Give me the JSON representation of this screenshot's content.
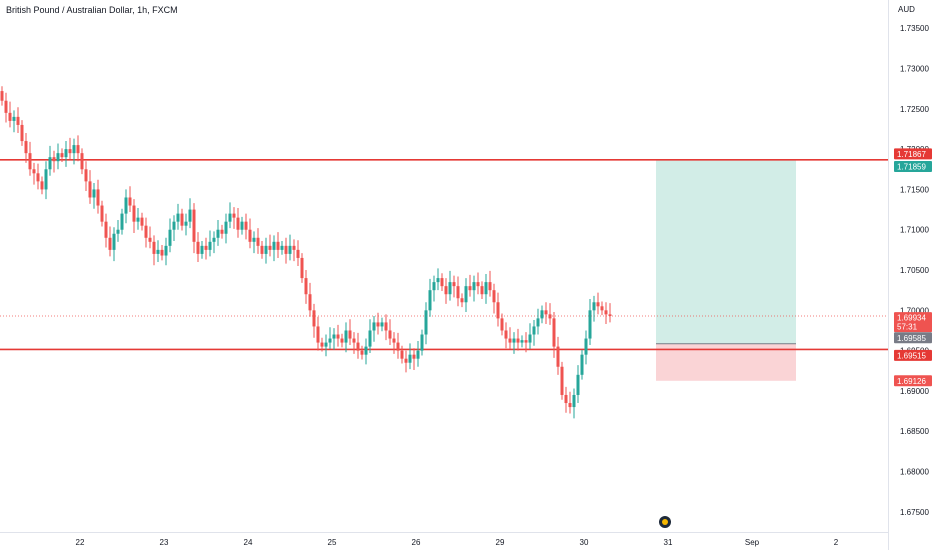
{
  "header": {
    "title": "British Pound / Australian Dollar, 1h, FXCM",
    "currency": "AUD"
  },
  "colors": {
    "up": "#26a69a",
    "down": "#ef5350",
    "level_line": "#e53935",
    "profit_zone": "#d2ede7",
    "loss_zone": "#fad4d6",
    "axis_text": "#131722",
    "grid_border": "#e0e3eb"
  },
  "chart_data": {
    "type": "candlestick",
    "price_ticks": [
      "1.73500",
      "1.73000",
      "1.72500",
      "1.72000",
      "1.71500",
      "1.71000",
      "1.70500",
      "1.70000",
      "1.69500",
      "1.69000",
      "1.68500",
      "1.68000",
      "1.67500"
    ],
    "price_tick_values": [
      1.735,
      1.73,
      1.725,
      1.72,
      1.715,
      1.71,
      1.705,
      1.7,
      1.695,
      1.69,
      1.685,
      1.68,
      1.675
    ],
    "date_ticks": [
      {
        "label": "22",
        "bar": 20
      },
      {
        "label": "23",
        "bar": 41
      },
      {
        "label": "24",
        "bar": 62
      },
      {
        "label": "25",
        "bar": 83
      },
      {
        "label": "26",
        "bar": 104
      },
      {
        "label": "29",
        "bar": 125
      },
      {
        "label": "30",
        "bar": 146
      },
      {
        "label": "31",
        "bar": 167
      },
      {
        "label": "Sep",
        "bar": 188
      },
      {
        "label": "2",
        "bar": 209
      }
    ],
    "ylim": [
      1.6725,
      1.7385
    ],
    "closes": [
      1.726,
      1.7245,
      1.7235,
      1.724,
      1.723,
      1.721,
      1.7195,
      1.7175,
      1.717,
      1.716,
      1.715,
      1.7175,
      1.719,
      1.7185,
      1.7195,
      1.719,
      1.72,
      1.7195,
      1.7205,
      1.7195,
      1.7175,
      1.716,
      1.714,
      1.715,
      1.713,
      1.711,
      1.709,
      1.7075,
      1.7095,
      1.71,
      1.712,
      1.714,
      1.713,
      1.711,
      1.7115,
      1.7105,
      1.709,
      1.7085,
      1.707,
      1.7075,
      1.7068,
      1.708,
      1.71,
      1.711,
      1.712,
      1.7105,
      1.711,
      1.7125,
      1.7085,
      1.707,
      1.708,
      1.7075,
      1.7085,
      1.709,
      1.71,
      1.7095,
      1.711,
      1.712,
      1.7115,
      1.71,
      1.711,
      1.71,
      1.7085,
      1.709,
      1.708,
      1.707,
      1.708,
      1.7075,
      1.7085,
      1.7075,
      1.708,
      1.707,
      1.708,
      1.7075,
      1.7065,
      1.704,
      1.702,
      1.7,
      1.698,
      1.696,
      1.6955,
      1.696,
      1.6965,
      1.697,
      1.6965,
      1.696,
      1.6975,
      1.6965,
      1.696,
      1.695,
      1.6945,
      1.6955,
      1.6975,
      1.6985,
      1.698,
      1.6985,
      1.6975,
      1.6965,
      1.696,
      1.695,
      1.694,
      1.6935,
      1.6945,
      1.694,
      1.695,
      1.697,
      1.7,
      1.7025,
      1.7035,
      1.704,
      1.703,
      1.702,
      1.7035,
      1.703,
      1.7015,
      1.701,
      1.703,
      1.7025,
      1.7035,
      1.703,
      1.702,
      1.7035,
      1.7025,
      1.701,
      1.699,
      1.6975,
      1.6965,
      1.696,
      1.6965,
      1.696,
      1.6963,
      1.696,
      1.697,
      1.698,
      1.699,
      1.7,
      1.6995,
      1.699,
      1.6955,
      1.693,
      1.6895,
      1.6885,
      1.688,
      1.6895,
      1.692,
      1.6945,
      1.6965,
      1.7,
      1.701,
      1.7005,
      1.7,
      1.6995,
      1.6993
    ]
  },
  "trade_box": {
    "entry": 1.69585,
    "take_profit": 1.71859,
    "stop_loss": 1.69126,
    "start_bar": 164,
    "end_bar": 199
  },
  "levels": [
    {
      "name": "resistance",
      "value": 1.71867
    },
    {
      "name": "support",
      "value": 1.69515
    }
  ],
  "price_tags": [
    {
      "name": "resistance-tag",
      "label": "1.71867",
      "value": 1.71867,
      "color": "#e53935",
      "offset": -6
    },
    {
      "name": "take-profit-tag",
      "label": "1.71859",
      "value": 1.71859,
      "color": "#26a69a",
      "offset": 6
    },
    {
      "name": "last-price-tag",
      "label": "1.69934",
      "sub": "57:31",
      "value": 1.69934,
      "color": "#ef5350",
      "offset": 2
    },
    {
      "name": "entry-tag",
      "label": "1.69585",
      "value": 1.69585,
      "color": "#787b86",
      "offset": -6
    },
    {
      "name": "support-tag",
      "label": "1.69515",
      "value": 1.69515,
      "color": "#e53935",
      "offset": 6
    },
    {
      "name": "stop-loss-tag",
      "label": "1.69126",
      "value": 1.69126,
      "color": "#ef5350",
      "offset": 0
    }
  ]
}
